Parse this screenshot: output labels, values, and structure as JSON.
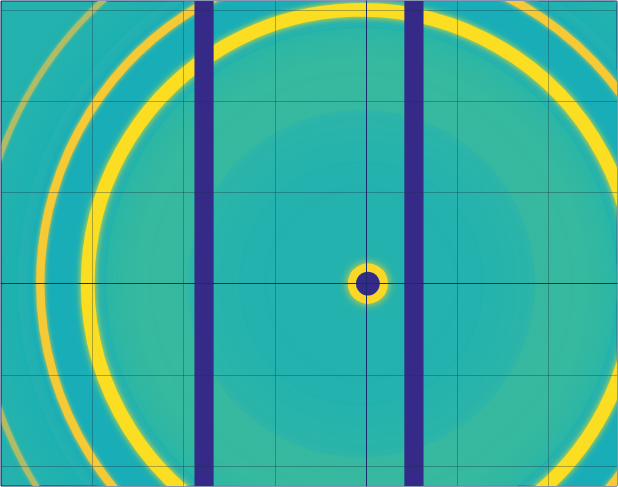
{
  "chart_data": {
    "type": "heatmap",
    "xlim": [
      -400,
      275
    ],
    "ylim": [
      -222,
      310
    ],
    "xticks": [
      -400,
      -300,
      -200,
      -100,
      0,
      100,
      200
    ],
    "yticks": [
      -200,
      -100,
      0,
      100,
      200,
      300
    ],
    "grid": true,
    "tick_labels": false,
    "zlim": [
      0,
      1
    ],
    "background": 0.45,
    "center": [
      -5,
      0
    ],
    "diffuse": [
      {
        "radius": 235,
        "width": 90,
        "intensity": 0.5
      },
      {
        "radius": 330,
        "width": 70,
        "intensity": 0.42
      }
    ],
    "rings": [
      {
        "radius": 300,
        "width": 15,
        "intensity": 0.92
      },
      {
        "radius": 352,
        "width": 9,
        "intensity": 0.85
      },
      {
        "radius": 420,
        "width": 6,
        "intensity": 0.68
      }
    ],
    "masks": [
      {
        "x": [
          -188,
          -167
        ],
        "intensity": 0
      },
      {
        "x": [
          42,
          63
        ],
        "intensity": 0
      }
    ],
    "beamstop": {
      "center": [
        2,
        0
      ],
      "radius": 13,
      "intensity": 0,
      "halo_width": 9,
      "halo_intensity": 0.9
    }
  }
}
